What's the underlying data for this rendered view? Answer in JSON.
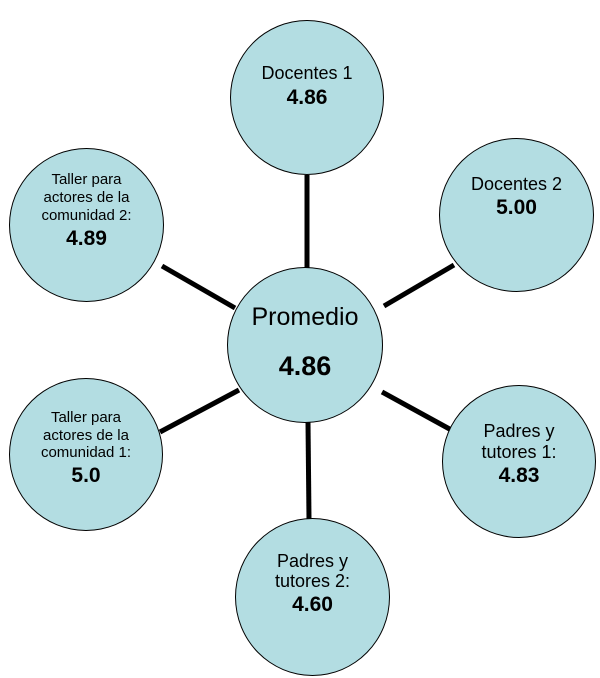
{
  "center": {
    "label": "Promedio",
    "value": "4.86"
  },
  "nodes": {
    "docentes_1": {
      "label": "Docentes 1",
      "value": "4.86"
    },
    "docentes_2": {
      "label": "Docentes 2",
      "value": "5.00"
    },
    "padres_1": {
      "label": "Padres y tutores 1:",
      "value": "4.83"
    },
    "padres_2": {
      "label": "Padres y tutores 2:",
      "value": "4.60"
    },
    "taller_1": {
      "label": "Taller para actores de la comunidad 1:",
      "value": "5.0"
    },
    "taller_2": {
      "label": "Taller para actores de la comunidad 2:",
      "value": "4.89"
    }
  },
  "colors": {
    "node_fill": "#b3dde2",
    "outline": "#000000",
    "connector": "#000000"
  }
}
